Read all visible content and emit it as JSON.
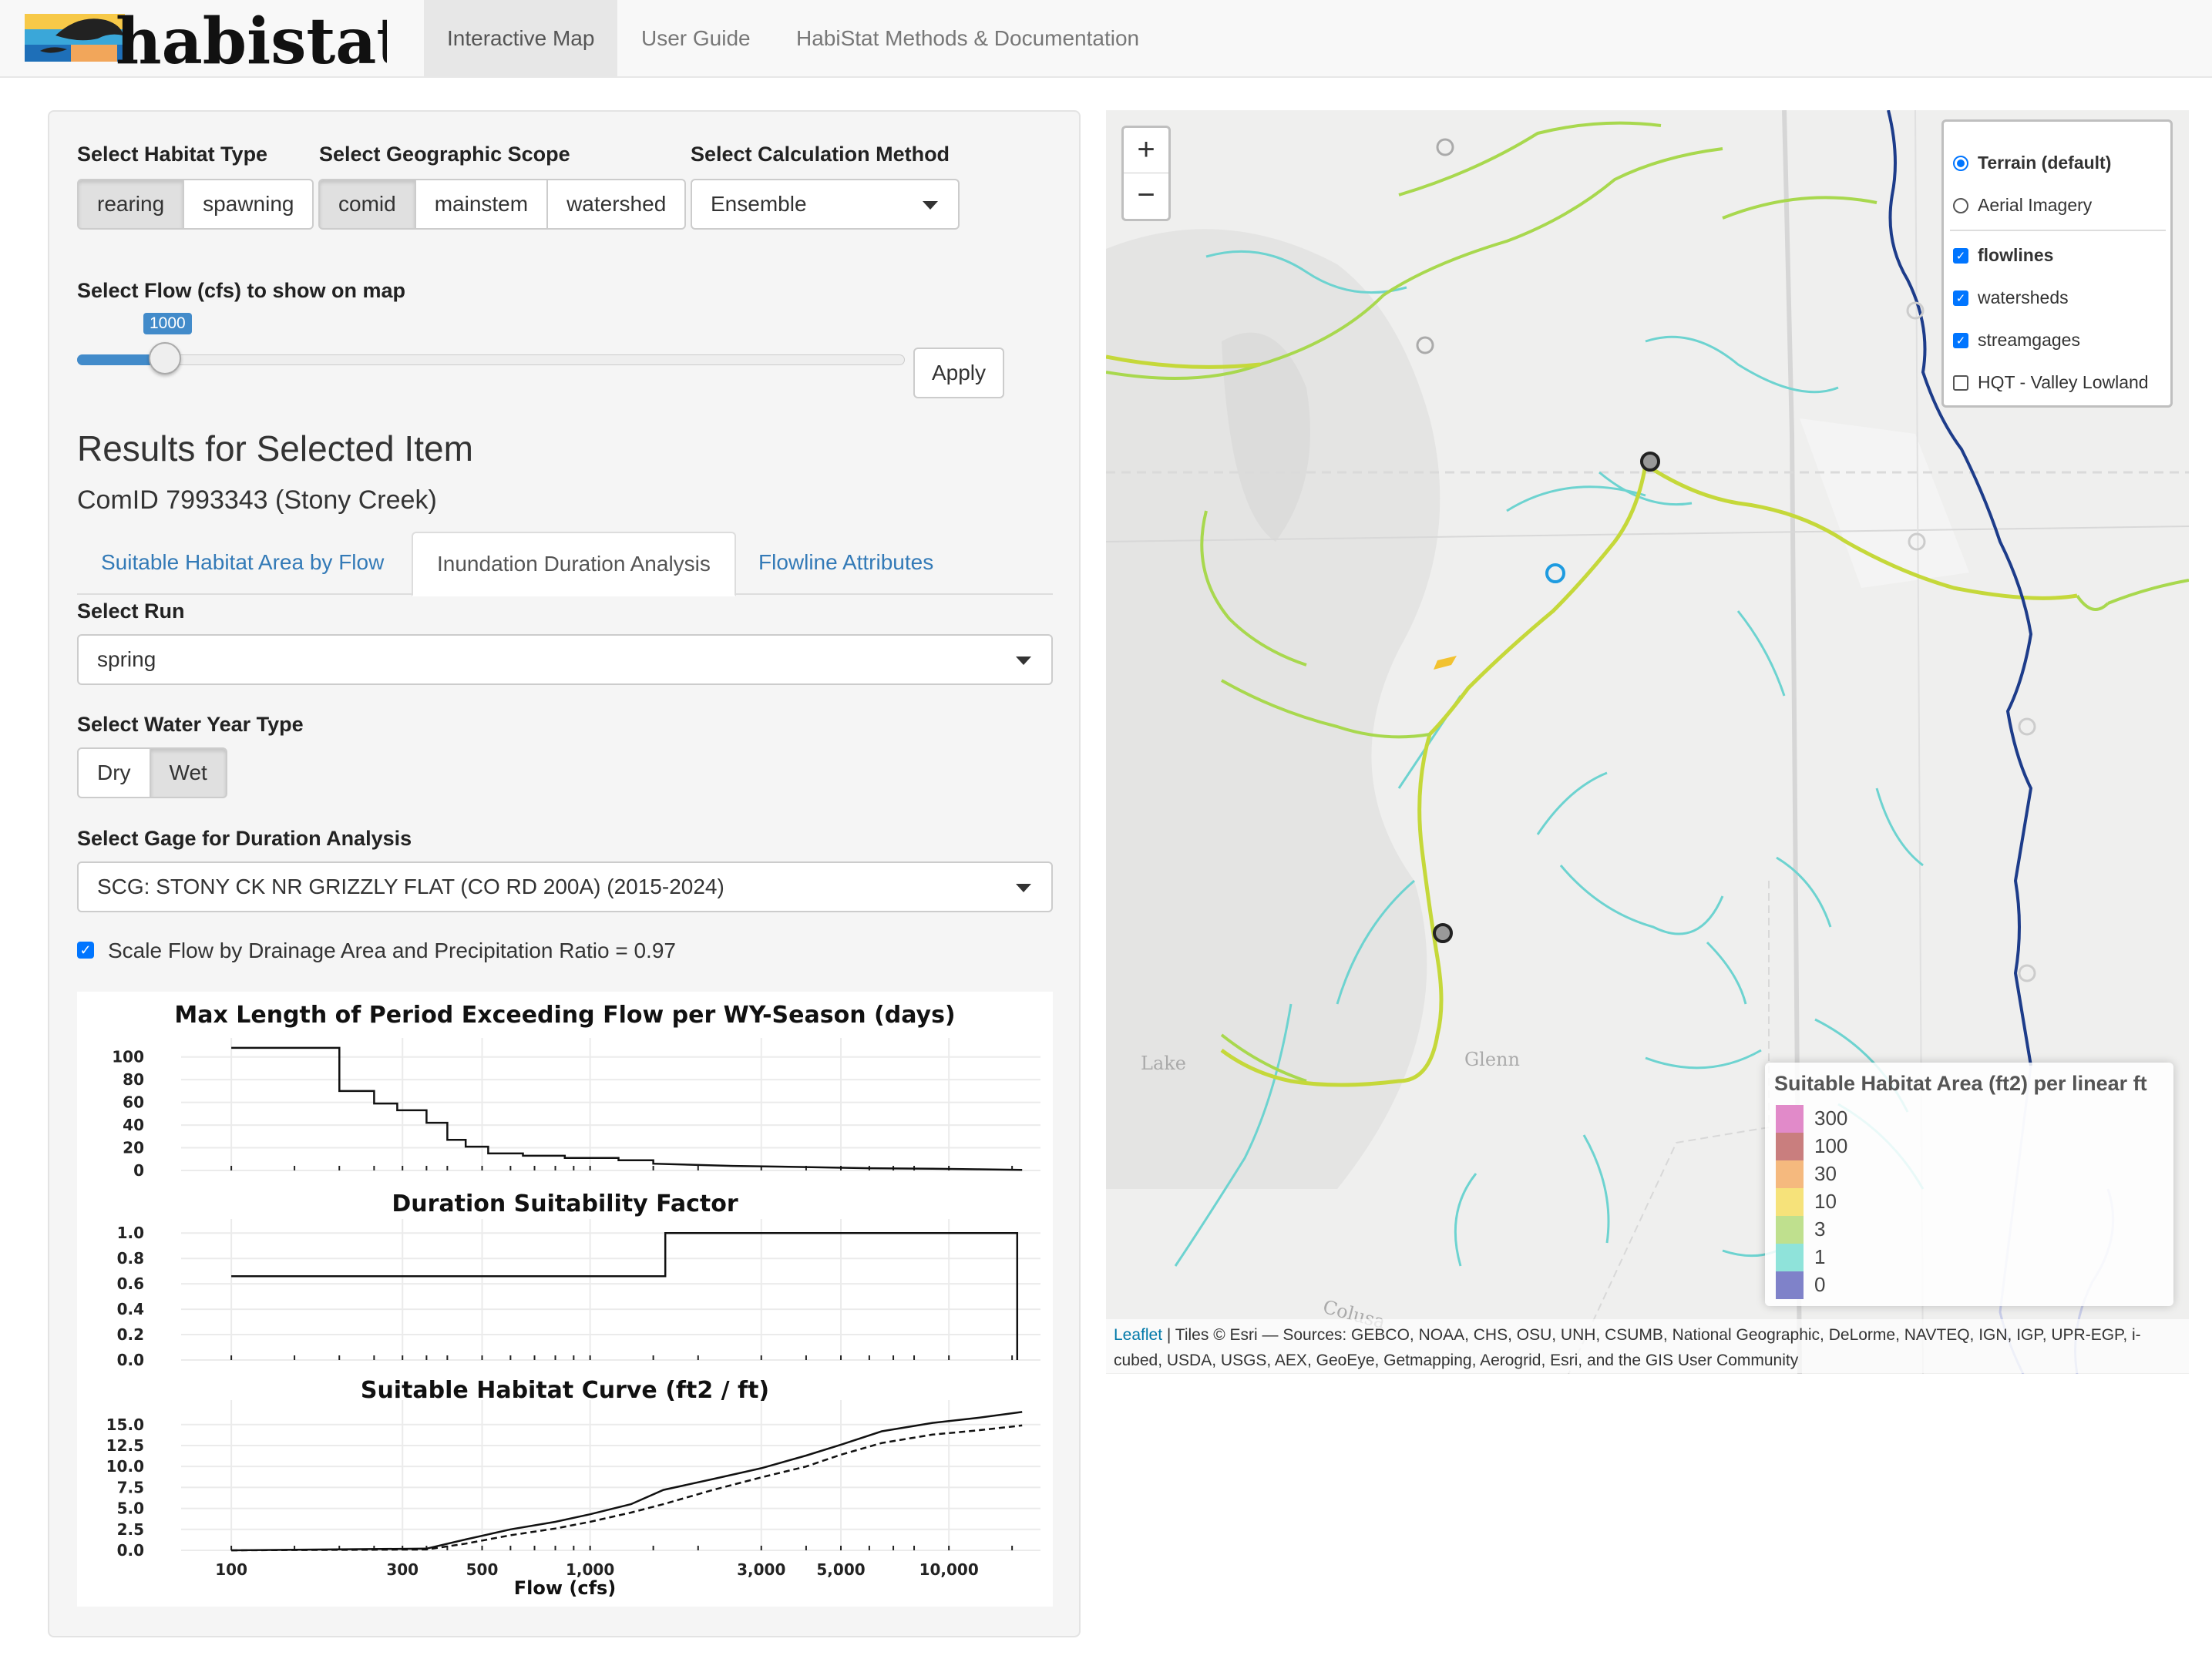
{
  "nav": {
    "logo_text": "habistat",
    "tabs": [
      {
        "label": "Interactive Map"
      },
      {
        "label": "User Guide"
      },
      {
        "label": "HabiStat Methods & Documentation"
      }
    ]
  },
  "controls": {
    "habitat_type_label": "Select Habitat Type",
    "habitat_types": [
      "rearing",
      "spawning"
    ],
    "habitat_selected": "rearing",
    "scope_label": "Select Geographic Scope",
    "scopes": [
      "comid",
      "mainstem",
      "watershed"
    ],
    "scope_selected": "comid",
    "method_label": "Select Calculation Method",
    "method_value": "Ensemble",
    "flow_label": "Select Flow (cfs) to show on map",
    "flow_value": "1000",
    "apply_label": "Apply"
  },
  "results": {
    "heading": "Results for Selected Item",
    "subheading": "ComID 7993343 (Stony Creek)",
    "tabs": [
      "Suitable Habitat Area by Flow",
      "Inundation Duration Analysis",
      "Flowline Attributes"
    ],
    "active_tab": "Inundation Duration Analysis",
    "run_label": "Select Run",
    "run_value": "spring",
    "wy_label": "Select Water Year Type",
    "wy_options": [
      "Dry",
      "Wet"
    ],
    "wy_selected": "Wet",
    "gage_label": "Select Gage for Duration Analysis",
    "gage_value": "SCG: STONY CK NR GRIZZLY FLAT (CO RD 200A) (2015-2024)",
    "scale_label": "Scale Flow by Drainage Area and Precipitation Ratio = 0.97",
    "scale_checked": true
  },
  "chart_data": [
    {
      "type": "line",
      "title": "Max Length of Period Exceeding Flow per WY-Season (days)",
      "x_scale": "log",
      "xlim": [
        80,
        18000
      ],
      "ylim": [
        0,
        110
      ],
      "yticks": [
        "100",
        "80",
        "60",
        "40",
        "20",
        "0"
      ],
      "ytick_values": [
        100,
        80,
        60,
        40,
        20,
        0
      ],
      "series": [
        {
          "values": [
            [
              100,
              108
            ],
            [
              200,
              108
            ],
            [
              200,
              70
            ],
            [
              250,
              70
            ],
            [
              250,
              59
            ],
            [
              290,
              59
            ],
            [
              290,
              53
            ],
            [
              350,
              53
            ],
            [
              350,
              42
            ],
            [
              400,
              42
            ],
            [
              400,
              27
            ],
            [
              450,
              27
            ],
            [
              450,
              21
            ],
            [
              520,
              21
            ],
            [
              520,
              15
            ],
            [
              650,
              15
            ],
            [
              650,
              13
            ],
            [
              850,
              13
            ],
            [
              850,
              11
            ],
            [
              1200,
              11
            ],
            [
              1200,
              9
            ],
            [
              1500,
              9
            ],
            [
              1500,
              6
            ],
            [
              2500,
              4
            ],
            [
              4000,
              3
            ],
            [
              6000,
              2
            ],
            [
              9000,
              1.5
            ],
            [
              12000,
              1
            ],
            [
              16000,
              0.5
            ]
          ],
          "style": "solid"
        }
      ]
    },
    {
      "type": "line",
      "title": "Duration Suitability Factor",
      "x_scale": "log",
      "xlim": [
        80,
        18000
      ],
      "ylim": [
        0,
        1.05
      ],
      "yticks": [
        "1.0",
        "0.8",
        "0.6",
        "0.4",
        "0.2",
        "0.0"
      ],
      "ytick_values": [
        1.0,
        0.8,
        0.6,
        0.4,
        0.2,
        0.0
      ],
      "series": [
        {
          "values": [
            [
              100,
              0.66
            ],
            [
              1620,
              0.66
            ],
            [
              1620,
              1.0
            ],
            [
              15500,
              1.0
            ],
            [
              15500,
              0.0
            ]
          ],
          "style": "solid"
        }
      ]
    },
    {
      "type": "line",
      "title": "Suitable Habitat Curve (ft2 / ft)",
      "x_scale": "log",
      "xlim": [
        80,
        18000
      ],
      "ylim": [
        0,
        17
      ],
      "xlabel": "Flow (cfs)",
      "xticks": [
        "100",
        "300",
        "500",
        "1,000",
        "3,000",
        "5,000",
        "10,000"
      ],
      "xtick_values": [
        100,
        300,
        500,
        1000,
        3000,
        5000,
        10000
      ],
      "yticks": [
        "15.0",
        "12.5",
        "10.0",
        "7.5",
        "5.0",
        "2.5",
        "0.0"
      ],
      "ytick_values": [
        15.0,
        12.5,
        10.0,
        7.5,
        5.0,
        2.5,
        0.0
      ],
      "series": [
        {
          "values": [
            [
              100,
              0
            ],
            [
              350,
              0.2
            ],
            [
              450,
              1.3
            ],
            [
              600,
              2.5
            ],
            [
              800,
              3.4
            ],
            [
              1000,
              4.3
            ],
            [
              1300,
              5.5
            ],
            [
              1600,
              7.2
            ],
            [
              2200,
              8.5
            ],
            [
              3000,
              9.8
            ],
            [
              4000,
              11.3
            ],
            [
              5000,
              12.6
            ],
            [
              6500,
              14.2
            ],
            [
              9000,
              15.2
            ],
            [
              12000,
              15.8
            ],
            [
              16000,
              16.5
            ]
          ],
          "style": "solid"
        },
        {
          "values": [
            [
              100,
              0
            ],
            [
              350,
              0.1
            ],
            [
              450,
              0.8
            ],
            [
              600,
              1.8
            ],
            [
              800,
              2.6
            ],
            [
              1000,
              3.4
            ],
            [
              1300,
              4.5
            ],
            [
              1600,
              5.5
            ],
            [
              2200,
              7.2
            ],
            [
              3000,
              8.7
            ],
            [
              4000,
              10.0
            ],
            [
              5000,
              11.4
            ],
            [
              6500,
              12.8
            ],
            [
              9000,
              13.8
            ],
            [
              12000,
              14.3
            ],
            [
              16000,
              14.9
            ]
          ],
          "style": "dashed"
        }
      ]
    }
  ],
  "map": {
    "zoom_in": "+",
    "zoom_out": "−",
    "basemaps": [
      {
        "label": "Terrain (default)",
        "checked": true
      },
      {
        "label": "Aerial Imagery",
        "checked": false
      }
    ],
    "overlays": [
      {
        "label": "flowlines",
        "checked": true
      },
      {
        "label": "watersheds",
        "checked": true
      },
      {
        "label": "streamgages",
        "checked": true
      },
      {
        "label": "HQT - Valley Lowland",
        "checked": false
      }
    ],
    "place_labels": [
      "Glenn",
      "Lake",
      "Colusa"
    ],
    "legend_title": "Suitable Habitat Area (ft2) per linear ft",
    "legend_items": [
      {
        "label": "300",
        "color": "#e18ac9"
      },
      {
        "label": "100",
        "color": "#c97e7e"
      },
      {
        "label": "30",
        "color": "#f5b97e"
      },
      {
        "label": "10",
        "color": "#f6e27a"
      },
      {
        "label": "3",
        "color": "#bfe08e"
      },
      {
        "label": "1",
        "color": "#8fe3da"
      },
      {
        "label": "0",
        "color": "#7f82c9"
      }
    ],
    "attribution_link": "Leaflet",
    "attribution": " | Tiles © Esri — Sources: GEBCO, NOAA, CHS, OSU, UNH, CSUMB, National Geographic, DeLorme, NAVTEQ, IGN, IGP, UPR-EGP, i-cubed, USDA, USGS, AEX, GeoEye, Getmapping, Aerogrid, Esri, and the GIS User Community"
  }
}
